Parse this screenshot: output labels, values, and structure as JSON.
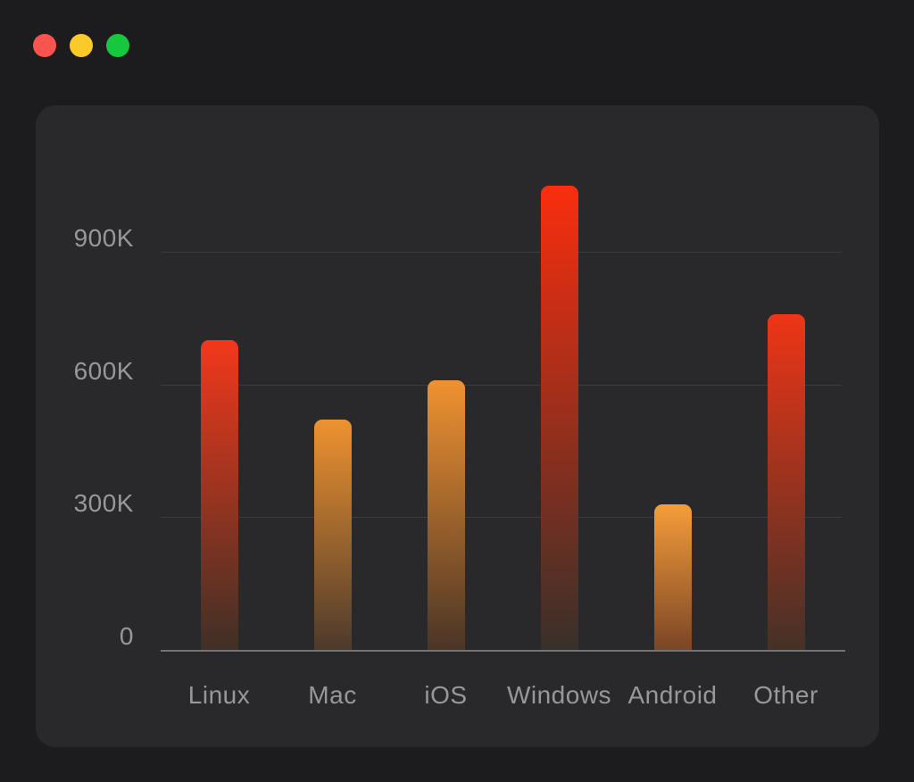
{
  "window": {
    "traffic_lights": [
      {
        "name": "close-button",
        "color": "#f9544f"
      },
      {
        "name": "minimize-button",
        "color": "#fcca28"
      },
      {
        "name": "zoom-button",
        "color": "#17c83f"
      }
    ]
  },
  "panel": {
    "background": "#29292b",
    "gridline_color": "#3c3c3e",
    "axis_line_color": "#737376",
    "label_color": "#98989b"
  },
  "chart_data": {
    "type": "bar",
    "title": "",
    "xlabel": "",
    "ylabel": "",
    "categories": [
      "Linux",
      "Mac",
      "iOS",
      "Windows",
      "Android",
      "Other"
    ],
    "values": [
      700000,
      520000,
      610000,
      1050000,
      330000,
      760000
    ],
    "ylim": [
      0,
      1130000
    ],
    "grid": true,
    "legend_position": "none",
    "yticks": [
      {
        "value": 0,
        "label": "0"
      },
      {
        "value": 300000,
        "label": "300K"
      },
      {
        "value": 600000,
        "label": "600K"
      },
      {
        "value": 900000,
        "label": "900K"
      }
    ],
    "bar_gradients": [
      {
        "top": "#f2381b",
        "bottom": "#3f3026"
      },
      {
        "top": "#ee9231",
        "bottom": "#4c3a2b"
      },
      {
        "top": "#f09231",
        "bottom": "#4a3526"
      },
      {
        "top": "#fa2e0e",
        "bottom": "#38302a"
      },
      {
        "top": "#f59d3a",
        "bottom": "#7a4627"
      },
      {
        "top": "#ee3517",
        "bottom": "#453127"
      }
    ]
  }
}
